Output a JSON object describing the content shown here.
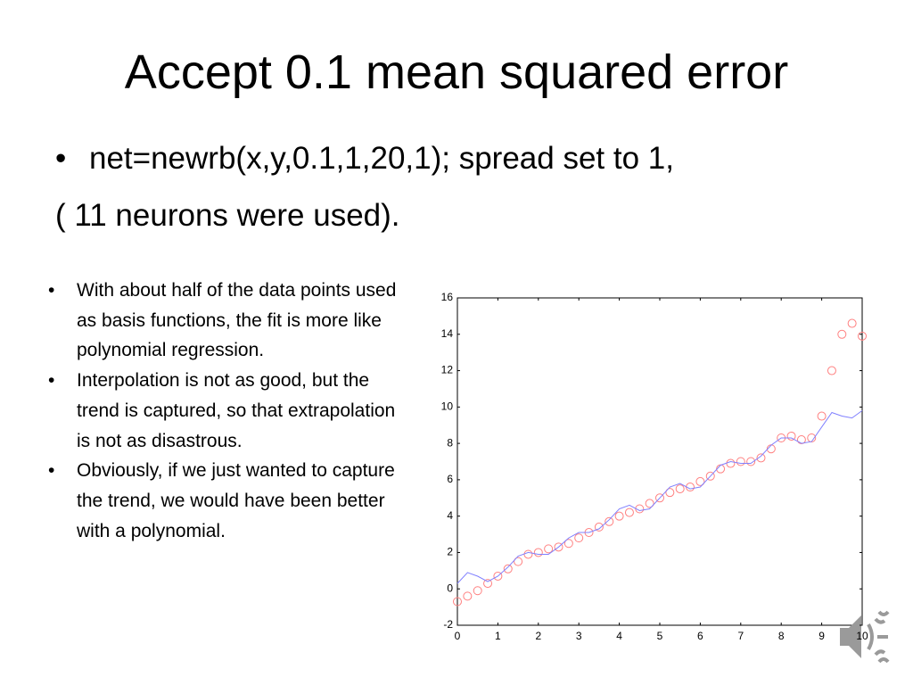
{
  "title": "Accept 0.1 mean squared error",
  "bullet": "net=newrb(x,y,0.1,1,20,1); spread set to 1,",
  "continuation": "( 11 neurons were used).",
  "side_bullets": [
    "With about half of the data points used as basis functions, the fit is more like polynomial regression.",
    "Interpolation is not as good, but the trend is captured, so that extrapolation is not as disastrous.",
    "Obviously, if we just wanted to capture the trend, we would have been better with a polynomial."
  ],
  "chart_data": {
    "type": "scatter",
    "x": [
      0,
      0.25,
      0.5,
      0.75,
      1,
      1.25,
      1.5,
      1.75,
      2,
      2.25,
      2.5,
      2.75,
      3,
      3.25,
      3.5,
      3.75,
      4,
      4.25,
      4.5,
      4.75,
      5,
      5.25,
      5.5,
      5.75,
      6,
      6.25,
      6.5,
      6.75,
      7,
      7.25,
      7.5,
      7.75,
      8,
      8.25,
      8.5,
      8.75,
      9,
      9.25,
      9.5,
      9.75,
      10
    ],
    "series": [
      {
        "color": "#ff8080",
        "marker": "open-circle",
        "values": [
          -0.7,
          -0.4,
          -0.1,
          0.3,
          0.7,
          1.1,
          1.5,
          1.9,
          2.0,
          2.2,
          2.3,
          2.5,
          2.8,
          3.1,
          3.4,
          3.7,
          4.0,
          4.2,
          4.4,
          4.7,
          5.0,
          5.3,
          5.5,
          5.6,
          5.9,
          6.2,
          6.6,
          6.9,
          7.0,
          7.0,
          7.2,
          7.7,
          8.3,
          8.4,
          8.2,
          8.3,
          9.5,
          12.0,
          14.0,
          14.6,
          13.9
        ]
      },
      {
        "color": "#8080ff",
        "marker": "line",
        "values": [
          0.3,
          0.9,
          0.7,
          0.4,
          0.7,
          1.2,
          1.8,
          2.0,
          1.9,
          1.9,
          2.3,
          2.8,
          3.1,
          3.1,
          3.3,
          3.8,
          4.4,
          4.6,
          4.3,
          4.4,
          5.0,
          5.6,
          5.8,
          5.5,
          5.6,
          6.2,
          6.8,
          7.0,
          6.9,
          6.9,
          7.3,
          7.9,
          8.3,
          8.3,
          8.0,
          8.1,
          8.9,
          9.7,
          9.5,
          9.4,
          9.8
        ]
      }
    ],
    "xlim": [
      0,
      10
    ],
    "xticks": [
      0,
      1,
      2,
      3,
      4,
      5,
      6,
      7,
      8,
      9,
      10
    ],
    "ylim": [
      -2,
      16
    ],
    "yticks": [
      -2,
      0,
      2,
      4,
      6,
      8,
      10,
      12,
      14,
      16
    ]
  }
}
